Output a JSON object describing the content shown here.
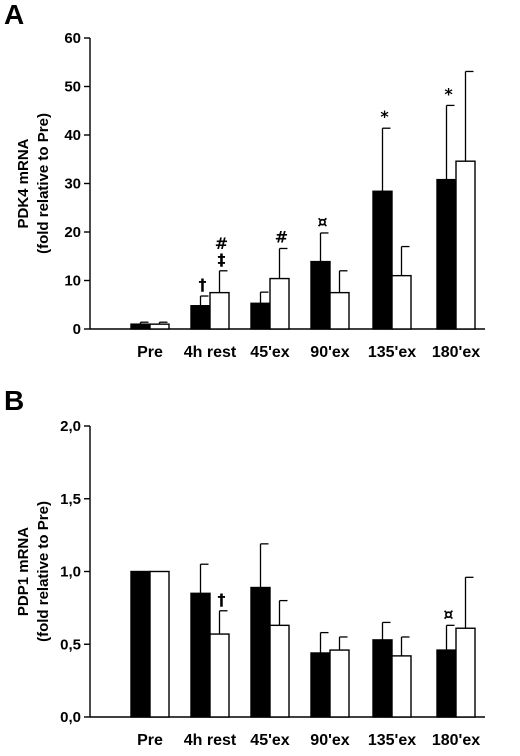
{
  "chart_data": [
    {
      "panel": "A",
      "type": "bar",
      "ylabel": [
        "PDK4 mRNA",
        "(fold relative to Pre)"
      ],
      "ylim": [
        0,
        60
      ],
      "yticks": [
        "0",
        "10",
        "20",
        "30",
        "40",
        "50",
        "60"
      ],
      "categories": [
        "Pre",
        "4h rest",
        "45'ex",
        "90'ex",
        "135'ex",
        "180'ex"
      ],
      "series": [
        {
          "fill": "#000000",
          "values": [
            1.0,
            4.8,
            5.3,
            13.9,
            28.4,
            30.8
          ],
          "errors": [
            0.4,
            2.0,
            2.3,
            5.9,
            13.0,
            15.3
          ]
        },
        {
          "fill": "#ffffff",
          "values": [
            1.0,
            7.5,
            10.4,
            7.5,
            11.0,
            34.6
          ],
          "errors": [
            0.4,
            4.5,
            6.2,
            4.5,
            6.0,
            18.5
          ]
        }
      ],
      "annotations": [
        {
          "category": 1,
          "series": 0,
          "text": "†"
        },
        {
          "category": 1,
          "series": 1,
          "text": "‡"
        },
        {
          "category": 1,
          "series": 1,
          "text": "#"
        },
        {
          "category": 2,
          "series": 1,
          "text": "#"
        },
        {
          "category": 3,
          "series": 0,
          "text": "¤"
        },
        {
          "category": 4,
          "series": 0,
          "text": "*"
        },
        {
          "category": 5,
          "series": 0,
          "text": "*"
        }
      ]
    },
    {
      "panel": "B",
      "type": "bar",
      "ylabel": [
        "PDP1 mRNA",
        "(fold relative to Pre)"
      ],
      "ylim": [
        0,
        2.0
      ],
      "yticks": [
        "0,0",
        "0,5",
        "1,0",
        "1,5",
        "2,0"
      ],
      "categories": [
        "Pre",
        "4h rest",
        "45'ex",
        "90'ex",
        "135'ex",
        "180'ex"
      ],
      "series": [
        {
          "fill": "#000000",
          "values": [
            1.0,
            0.85,
            0.89,
            0.44,
            0.53,
            0.46
          ],
          "errors": [
            0,
            0.2,
            0.3,
            0.14,
            0.12,
            0.17
          ]
        },
        {
          "fill": "#ffffff",
          "values": [
            1.0,
            0.57,
            0.63,
            0.46,
            0.42,
            0.61
          ],
          "errors": [
            0,
            0.16,
            0.17,
            0.09,
            0.13,
            0.35
          ]
        }
      ],
      "annotations": [
        {
          "category": 1,
          "series": 1,
          "text": "†"
        },
        {
          "category": 5,
          "series": 0,
          "text": "¤"
        }
      ]
    }
  ]
}
